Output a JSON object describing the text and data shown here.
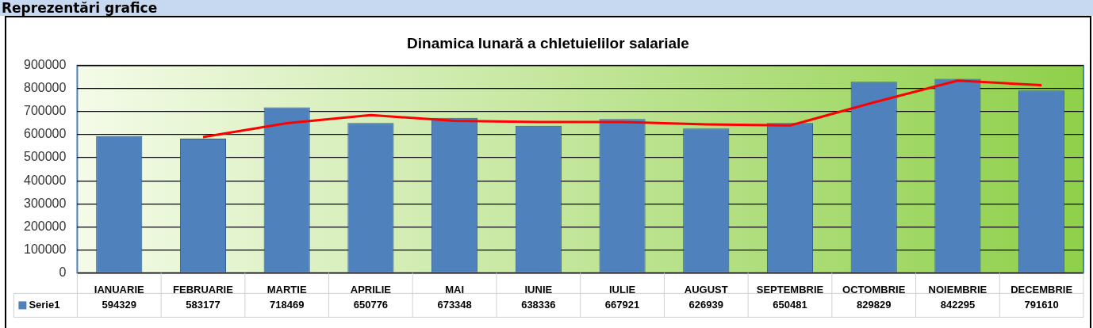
{
  "chart_data": {
    "type": "bar",
    "title": "Dinamica lunară a chletuielilor salariale",
    "annotations": [
      "Reprezentări grafice"
    ],
    "categories": [
      "IANUARIE",
      "FEBRUARIE",
      "MARTIE",
      "APRILIE",
      "MAI",
      "IUNIE",
      "IULIE",
      "AUGUST",
      "SEPTEMBRIE",
      "OCTOMBRIE",
      "NOIEMBRIE",
      "DECEMBRIE"
    ],
    "series": [
      {
        "name": "Serie1",
        "color": "#4f81bd",
        "values": [
          594329,
          583177,
          718469,
          650776,
          673348,
          638336,
          667921,
          626939,
          650481,
          829829,
          842295,
          791610
        ],
        "value_labels": [
          "594329",
          "583177",
          "718469",
          "650776",
          "673348",
          "638336",
          "667921",
          "626939",
          "650481",
          "829829",
          "842295",
          "791610"
        ]
      },
      {
        "type": "line",
        "color": "#ff0000",
        "values": [
          null,
          590000,
          650000,
          685000,
          660000,
          655000,
          655000,
          645000,
          640000,
          740000,
          835000,
          815000
        ]
      }
    ],
    "ylim": [
      0,
      900000
    ],
    "yticks": [
      0,
      100000,
      200000,
      300000,
      400000,
      500000,
      600000,
      700000,
      800000,
      900000
    ],
    "grid": "y",
    "legend": "bottom left",
    "marker": "none",
    "line_style": "solid"
  }
}
